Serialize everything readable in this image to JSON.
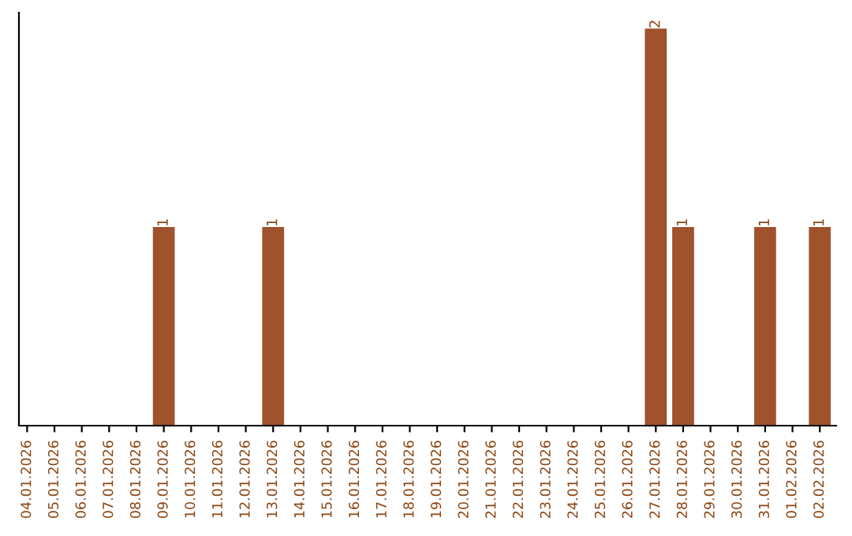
{
  "chart_data": {
    "type": "bar",
    "categories": [
      "04.01.2026",
      "05.01.2026",
      "06.01.2026",
      "07.01.2026",
      "08.01.2026",
      "09.01.2026",
      "10.01.2026",
      "11.01.2026",
      "12.01.2026",
      "13.01.2026",
      "14.01.2026",
      "15.01.2026",
      "16.01.2026",
      "17.01.2026",
      "18.01.2026",
      "19.01.2026",
      "20.01.2026",
      "21.01.2026",
      "22.01.2026",
      "23.01.2026",
      "24.01.2026",
      "25.01.2026",
      "26.01.2026",
      "27.01.2026",
      "28.01.2026",
      "29.01.2026",
      "30.01.2026",
      "31.01.2026",
      "01.02.2026",
      "02.02.2026"
    ],
    "values": [
      0,
      0,
      0,
      0,
      0,
      1,
      0,
      0,
      0,
      1,
      0,
      0,
      0,
      0,
      0,
      0,
      0,
      0,
      0,
      0,
      0,
      0,
      0,
      2,
      1,
      0,
      0,
      1,
      0,
      1
    ],
    "color": "#a0522d",
    "ylim": [
      0,
      2.08
    ],
    "value_labels": [
      null,
      null,
      null,
      null,
      null,
      "1",
      null,
      null,
      null,
      "1",
      null,
      null,
      null,
      null,
      null,
      null,
      null,
      null,
      null,
      null,
      null,
      null,
      null,
      "2",
      "1",
      null,
      null,
      "1",
      null,
      "1"
    ],
    "tick_labels": "x",
    "grid": false,
    "legend": false
  }
}
